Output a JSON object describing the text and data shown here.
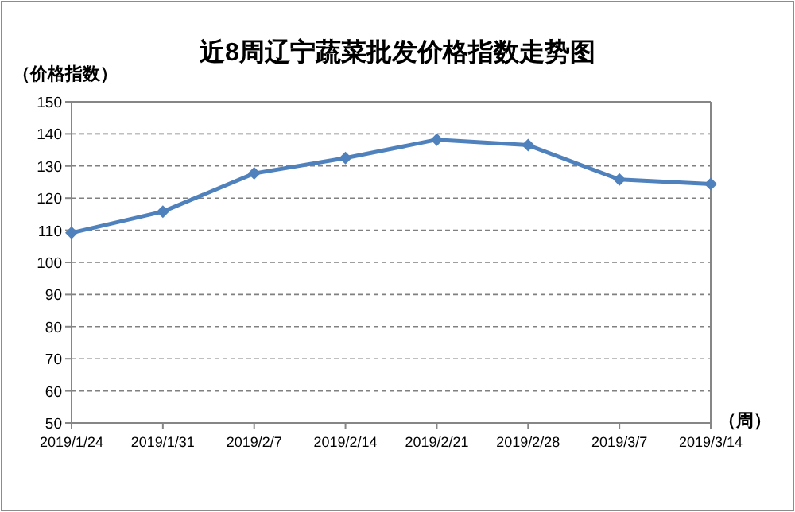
{
  "chart_data": {
    "type": "line",
    "title": "近8周辽宁蔬菜批发价格指数走势图",
    "ylabel": "（价格指数）",
    "xlabel": "（周）",
    "categories": [
      "2019/1/24",
      "2019/1/31",
      "2019/2/7",
      "2019/2/14",
      "2019/2/21",
      "2019/2/28",
      "2019/3/7",
      "2019/3/14"
    ],
    "series": [
      {
        "color": "#4f81bd",
        "values": [
          109.2,
          115.8,
          127.7,
          132.5,
          138.2,
          136.5,
          125.8,
          124.4
        ]
      }
    ],
    "ylim": [
      50,
      150
    ],
    "yticks": [
      50,
      60,
      70,
      80,
      90,
      100,
      110,
      120,
      130,
      140,
      150
    ],
    "grid": "y",
    "marker": "diamond",
    "line_style": "solid"
  }
}
